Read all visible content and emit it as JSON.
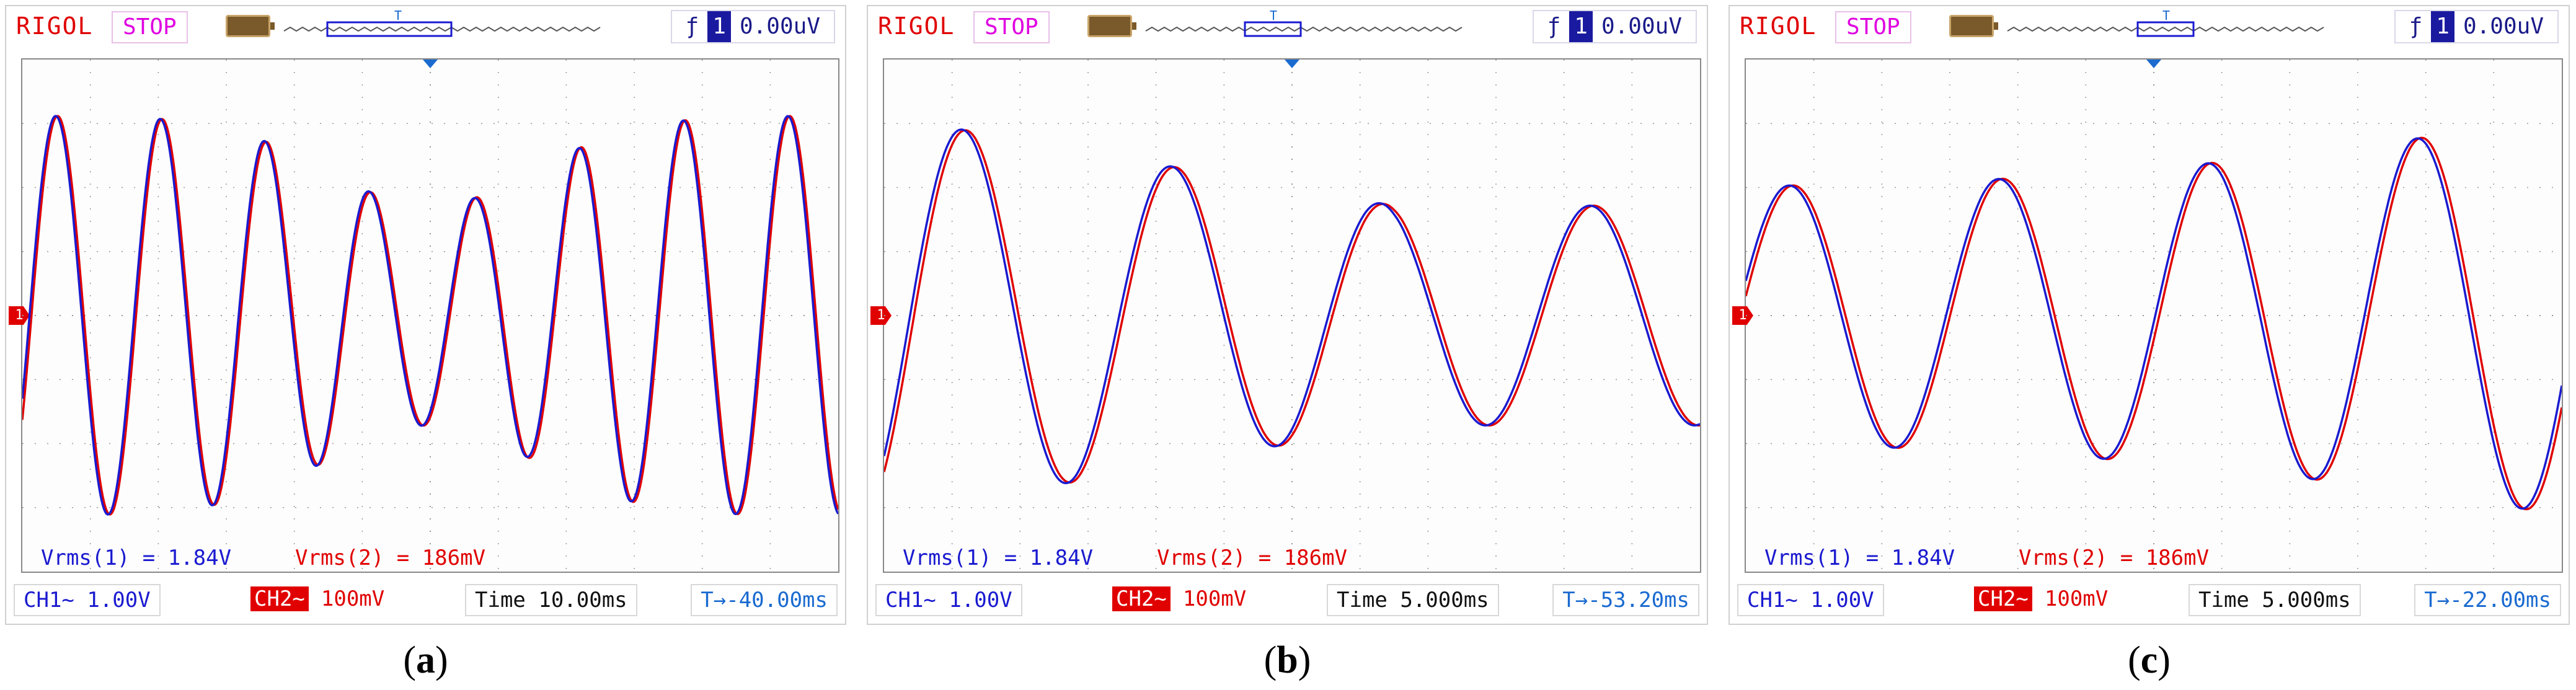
{
  "scopes": [
    {
      "brand": "RIGOL",
      "state": "STOP",
      "trigger": {
        "symbol": "ƒ",
        "channel": "1",
        "level": "0.00uV"
      },
      "ch1_marker": "1",
      "meas1": "Vrms(1) = 1.84V",
      "meas2": "Vrms(2) = 186mV",
      "ch1": "CH1~  1.00V",
      "ch2_tag": "CH2~",
      "ch2_scale": "100mV",
      "time": "Time 10.00ms",
      "offset": "T→-40.00ms",
      "caption_open": "(",
      "caption_letter": "a",
      "caption_close": ")",
      "colors": {
        "ch1": "#1a1ad0",
        "ch2": "#e00000"
      }
    },
    {
      "brand": "RIGOL",
      "state": "STOP",
      "trigger": {
        "symbol": "ƒ",
        "channel": "1",
        "level": "0.00uV"
      },
      "ch1_marker": "1",
      "meas1": "Vrms(1) = 1.84V",
      "meas2": "Vrms(2) = 186mV",
      "ch1": "CH1~  1.00V",
      "ch2_tag": "CH2~",
      "ch2_scale": "100mV",
      "time": "Time 5.000ms",
      "offset": "T→-53.20ms",
      "caption_open": "(",
      "caption_letter": "b",
      "caption_close": ")",
      "colors": {
        "ch1": "#1a1ad0",
        "ch2": "#e00000"
      }
    },
    {
      "brand": "RIGOL",
      "state": "STOP",
      "trigger": {
        "symbol": "ƒ",
        "channel": "1",
        "level": "0.00uV"
      },
      "ch1_marker": "1",
      "meas1": "Vrms(1) = 1.84V",
      "meas2": "Vrms(2) = 186mV",
      "ch1": "CH1~  1.00V",
      "ch2_tag": "CH2~",
      "ch2_scale": "100mV",
      "time": "Time 5.000ms",
      "offset": "T→-22.00ms",
      "caption_open": "(",
      "caption_letter": "c",
      "caption_close": ")",
      "colors": {
        "ch1": "#1a1ad0",
        "ch2": "#e00000"
      }
    }
  ]
}
